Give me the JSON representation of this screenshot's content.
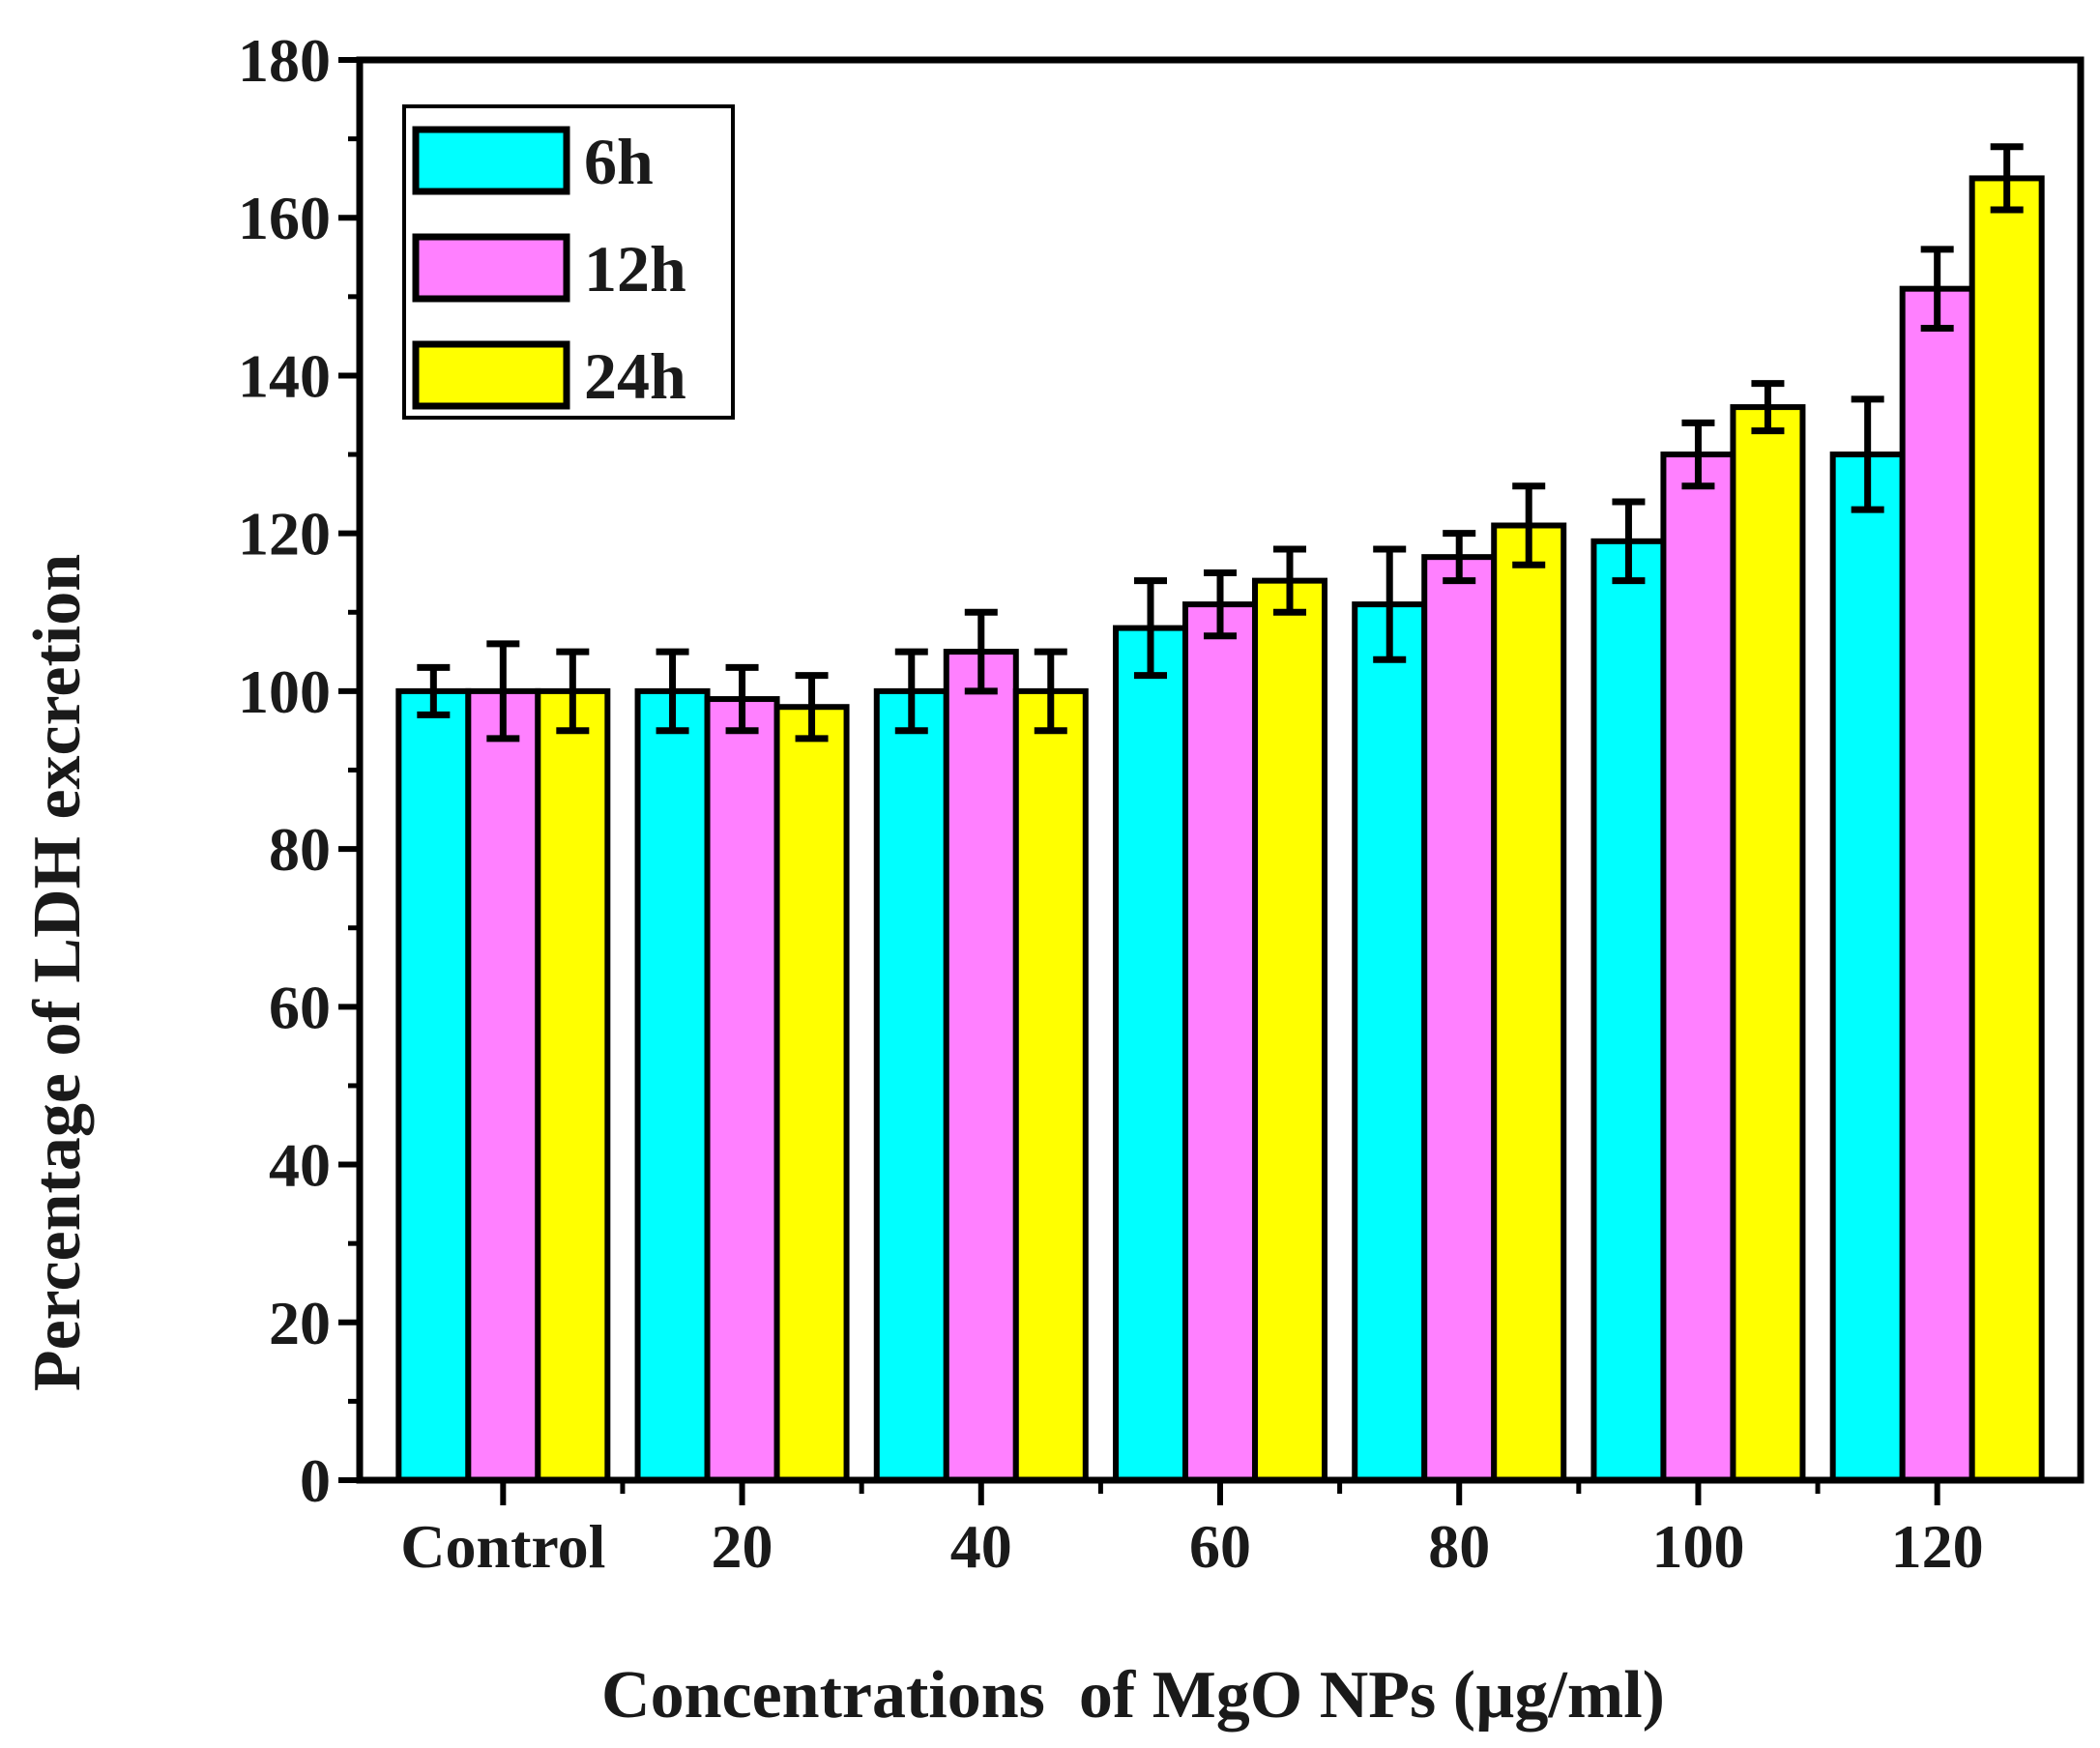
{
  "chart_data": {
    "type": "bar",
    "title": "",
    "xlabel": "Concentrations  of MgO NPs (µg/ml)",
    "ylabel": "Percentage of LDH excretion",
    "ylim": [
      0,
      180
    ],
    "yticks": [
      0,
      20,
      40,
      60,
      80,
      100,
      120,
      140,
      160,
      180
    ],
    "grid": false,
    "legend_position": "top-left",
    "categories": [
      "Control",
      "20",
      "40",
      "60",
      "80",
      "100",
      "120"
    ],
    "series": [
      {
        "name": "6h",
        "color": "#00ffff",
        "values": [
          100,
          100,
          100,
          108,
          111,
          119,
          130
        ],
        "errors": [
          3,
          5,
          5,
          6,
          7,
          5,
          7
        ]
      },
      {
        "name": "12h",
        "color": "#ff80ff",
        "values": [
          100,
          99,
          105,
          111,
          117,
          130,
          151
        ],
        "errors": [
          6,
          4,
          5,
          4,
          3,
          4,
          5
        ]
      },
      {
        "name": "24h",
        "color": "#ffff00",
        "values": [
          100,
          98,
          100,
          114,
          121,
          136,
          165
        ],
        "errors": [
          5,
          4,
          5,
          4,
          5,
          3,
          4
        ]
      }
    ]
  }
}
